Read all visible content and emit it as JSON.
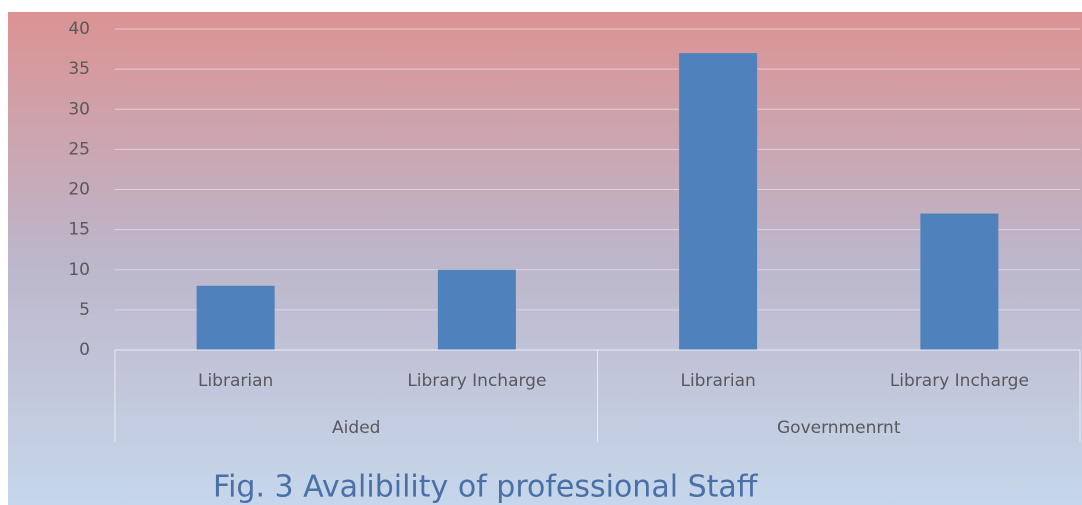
{
  "chart_data": {
    "type": "bar",
    "caption": "Fig. 3 Avalibility of professional Staff",
    "groups": [
      {
        "name": "Aided",
        "categories": [
          "Librarian",
          "Library Incharge"
        ],
        "values": [
          8,
          10
        ]
      },
      {
        "name": "Governmenrnt",
        "categories": [
          "Librarian",
          "Library Incharge"
        ],
        "values": [
          37,
          17
        ]
      }
    ],
    "color": "#4f81bd",
    "ylim": [
      0,
      40
    ],
    "yticks": [
      0,
      5,
      10,
      15,
      20,
      25,
      30,
      35,
      40
    ],
    "grid": true
  }
}
